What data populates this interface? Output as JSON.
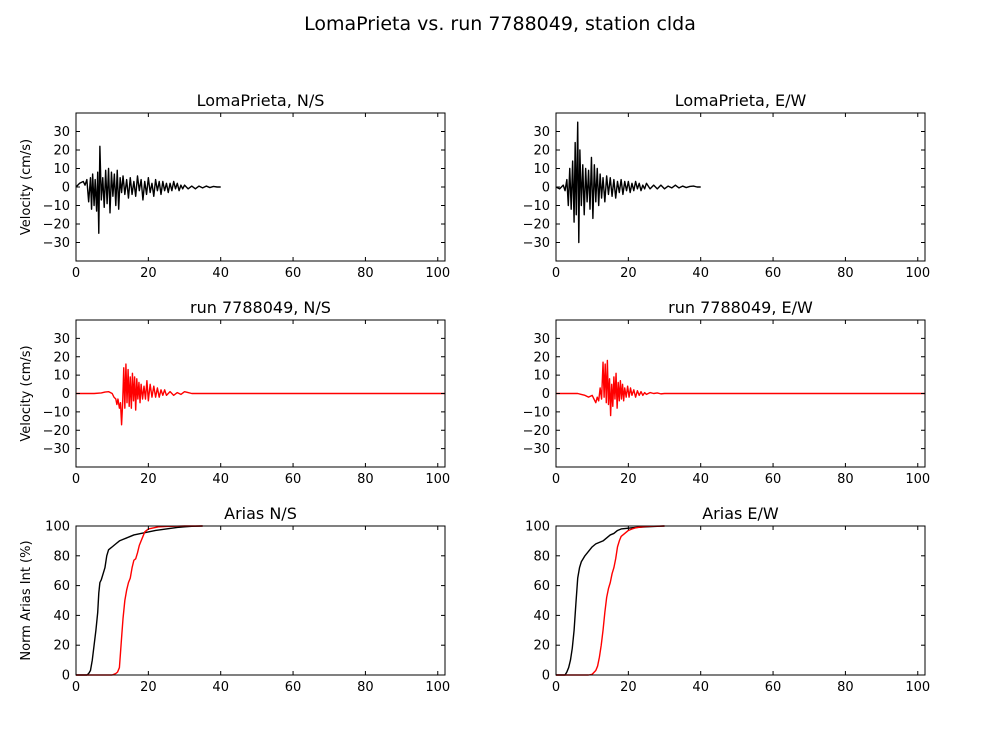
{
  "figure": {
    "title": "LomaPrieta vs. run 7788049, station clda"
  },
  "chart_data": [
    {
      "id": "p00",
      "type": "line",
      "title": "LomaPrieta, N/S",
      "ylabel": "Velocity (cm/s)",
      "xlim": [
        0,
        102
      ],
      "ylim": [
        -40,
        40
      ],
      "xticks": [
        0,
        20,
        40,
        60,
        80,
        100
      ],
      "yticks": [
        -30,
        -20,
        -10,
        0,
        10,
        20,
        30
      ],
      "series": [
        {
          "color": "#000000",
          "x": [
            0,
            1,
            2,
            2.5,
            3,
            3.5,
            4,
            4.3,
            4.6,
            5,
            5.3,
            5.7,
            6,
            6.3,
            6.6,
            7,
            7.4,
            7.8,
            8.2,
            8.6,
            9,
            9.4,
            9.8,
            10.2,
            10.6,
            11,
            11.4,
            11.8,
            12.2,
            12.6,
            13,
            13.5,
            14,
            14.5,
            15,
            15.5,
            16,
            16.5,
            17,
            17.5,
            18,
            18.5,
            19,
            19.5,
            20,
            20.5,
            21,
            21.5,
            22,
            22.5,
            23,
            23.5,
            24,
            24.5,
            25,
            25.5,
            26,
            26.5,
            27,
            27.5,
            28,
            28.5,
            29,
            29.5,
            30,
            31,
            32,
            33,
            34,
            35,
            36,
            37,
            38,
            39,
            40
          ],
          "y": [
            0,
            2,
            3,
            1,
            4,
            -8,
            5,
            -12,
            7,
            -10,
            4,
            -13,
            8,
            -25,
            22,
            -7,
            5,
            -11,
            9,
            -9,
            10,
            -14,
            8,
            -5,
            7,
            -10,
            9,
            -12,
            5,
            -3,
            6,
            -4,
            4,
            -6,
            5,
            -4,
            3,
            -5,
            6,
            -2,
            4,
            -7,
            3,
            -4,
            5,
            -3,
            2,
            -5,
            4,
            -2,
            3,
            -4,
            3,
            -2,
            2,
            -3,
            2,
            -2,
            3,
            -1,
            2,
            -2,
            1,
            -1,
            1,
            -1,
            0.5,
            -1,
            0.5,
            -0.5,
            0.5,
            -0.3,
            0.3,
            0,
            0
          ]
        }
      ]
    },
    {
      "id": "p01",
      "type": "line",
      "title": "LomaPrieta, E/W",
      "ylabel": "",
      "xlim": [
        0,
        102
      ],
      "ylim": [
        -40,
        40
      ],
      "xticks": [
        0,
        20,
        40,
        60,
        80,
        100
      ],
      "yticks": [
        -30,
        -20,
        -10,
        0,
        10,
        20,
        30
      ],
      "series": [
        {
          "color": "#000000",
          "x": [
            0,
            1,
            2,
            2.5,
            3,
            3.4,
            3.8,
            4.2,
            4.6,
            5,
            5.3,
            5.6,
            6,
            6.3,
            6.6,
            7,
            7.4,
            7.8,
            8.2,
            8.6,
            9,
            9.4,
            9.8,
            10.2,
            10.6,
            11,
            11.4,
            11.8,
            12.2,
            12.6,
            13,
            13.5,
            14,
            14.5,
            15,
            15.5,
            16,
            16.5,
            17,
            17.5,
            18,
            18.5,
            19,
            19.5,
            20,
            20.5,
            21,
            21.5,
            22,
            22.5,
            23,
            23.5,
            24,
            24.5,
            25,
            26,
            27,
            28,
            29,
            30,
            31,
            32,
            33,
            34,
            35,
            36,
            37,
            38,
            39,
            40
          ],
          "y": [
            0,
            -1,
            1,
            -2,
            4,
            -10,
            10,
            -12,
            14,
            -19,
            24,
            -15,
            35,
            -30,
            20,
            -10,
            12,
            -15,
            10,
            -8,
            9,
            -12,
            16,
            -17,
            12,
            -8,
            10,
            -10,
            7,
            -6,
            5,
            -8,
            6,
            -4,
            5,
            -5,
            4,
            -6,
            3,
            -3,
            4,
            -4,
            3,
            -2,
            3,
            -3,
            2,
            -2,
            3,
            -1,
            2,
            -2,
            1,
            -1,
            2,
            -1,
            1,
            -1,
            1,
            -1,
            0.5,
            -0.5,
            1,
            -0.5,
            0.5,
            -0.3,
            0.3,
            0.5,
            0,
            0
          ]
        }
      ]
    },
    {
      "id": "p10",
      "type": "line",
      "title": "run 7788049, N/S",
      "ylabel": "Velocity (cm/s)",
      "xlim": [
        0,
        102
      ],
      "ylim": [
        -40,
        40
      ],
      "xticks": [
        0,
        20,
        40,
        60,
        80,
        100
      ],
      "yticks": [
        -30,
        -20,
        -10,
        0,
        10,
        20,
        30
      ],
      "series": [
        {
          "color": "#ff0000",
          "x": [
            0,
            5,
            7,
            8,
            9,
            10,
            10.5,
            11,
            11.3,
            11.6,
            12,
            12.3,
            12.6,
            12.9,
            13.2,
            13.5,
            13.8,
            14.1,
            14.4,
            14.7,
            15,
            15.3,
            15.6,
            15.9,
            16.2,
            16.5,
            16.8,
            17.1,
            17.4,
            17.7,
            18,
            18.4,
            18.8,
            19.2,
            19.6,
            20,
            20.5,
            21,
            21.5,
            22,
            22.5,
            23,
            23.5,
            24,
            24.5,
            25,
            26,
            27,
            28,
            29,
            30,
            31,
            32,
            34,
            36,
            40,
            60,
            80,
            102
          ],
          "y": [
            0,
            0,
            0.3,
            0.8,
            1,
            0,
            -2,
            -3,
            -6,
            -3,
            -8,
            -5,
            -17,
            -5,
            14,
            -8,
            16,
            -5,
            13,
            -7,
            9,
            -8,
            11,
            -4,
            9,
            -9,
            8,
            -3,
            6,
            -5,
            5,
            -3,
            4,
            -3,
            7,
            -4,
            5,
            -2,
            4,
            -2,
            3,
            -2,
            2,
            -1,
            2,
            -1,
            1,
            -1,
            0.5,
            -0.5,
            1,
            0.5,
            0,
            0,
            0,
            0,
            0,
            0,
            0
          ]
        }
      ]
    },
    {
      "id": "p11",
      "type": "line",
      "title": "run 7788049, E/W",
      "ylabel": "",
      "xlim": [
        0,
        102
      ],
      "ylim": [
        -40,
        40
      ],
      "xticks": [
        0,
        20,
        40,
        60,
        80,
        100
      ],
      "yticks": [
        -30,
        -20,
        -10,
        0,
        10,
        20,
        30
      ],
      "series": [
        {
          "color": "#ff0000",
          "x": [
            0,
            6,
            7,
            8,
            9,
            10,
            10.5,
            11,
            11.4,
            11.8,
            12.2,
            12.6,
            13,
            13.3,
            13.6,
            13.9,
            14.2,
            14.5,
            14.8,
            15.1,
            15.4,
            15.7,
            16,
            16.3,
            16.6,
            16.9,
            17.2,
            17.5,
            17.8,
            18.1,
            18.4,
            18.7,
            19,
            19.4,
            19.8,
            20.2,
            20.6,
            21,
            21.5,
            22,
            22.5,
            23,
            23.5,
            24,
            24.5,
            25,
            26,
            27,
            28,
            29,
            30,
            32,
            40,
            60,
            80,
            102
          ],
          "y": [
            0,
            0,
            -0.5,
            -1,
            -2,
            -1,
            -3,
            -5,
            -2,
            -4,
            3,
            -3,
            17,
            -2,
            16,
            -5,
            18,
            -6,
            8,
            -12,
            5,
            -7,
            9,
            -3,
            11,
            -8,
            6,
            -4,
            7,
            -3,
            5,
            -4,
            3,
            -2,
            4,
            -2,
            3,
            -1,
            2,
            -2,
            1.5,
            -1,
            1,
            -1,
            0.5,
            -0.5,
            0.5,
            0,
            0.3,
            -0.2,
            0,
            0,
            0,
            0,
            0,
            0
          ]
        }
      ]
    },
    {
      "id": "p20",
      "type": "line",
      "title": "Arias N/S",
      "ylabel": "Norm Arias Int (%)",
      "xlim": [
        0,
        102
      ],
      "ylim": [
        0,
        100
      ],
      "xticks": [
        0,
        20,
        40,
        60,
        80,
        100
      ],
      "yticks": [
        0,
        20,
        40,
        60,
        80,
        100
      ],
      "series": [
        {
          "color": "#000000",
          "x": [
            0,
            3,
            3.5,
            4,
            4.5,
            5,
            5.5,
            6,
            6.3,
            6.6,
            7,
            7.5,
            8,
            8.5,
            9,
            9.5,
            10,
            11,
            12,
            13,
            14,
            15,
            16,
            18,
            20,
            22,
            25,
            28,
            30,
            32,
            35
          ],
          "y": [
            0,
            0,
            1,
            3,
            10,
            20,
            30,
            42,
            55,
            62,
            64,
            68,
            72,
            80,
            84,
            85,
            86,
            88,
            90,
            91,
            92,
            93,
            94,
            95,
            96,
            97,
            98,
            99,
            99.5,
            99.8,
            100
          ]
        },
        {
          "color": "#ff0000",
          "x": [
            0,
            10,
            11,
            11.5,
            12,
            12.3,
            12.6,
            13,
            13.5,
            14,
            14.5,
            15,
            15.5,
            16,
            16.5,
            17,
            17.5,
            18,
            18.5,
            19,
            19.5,
            20,
            21,
            22,
            23,
            25,
            28,
            30,
            35
          ],
          "y": [
            0,
            0,
            1,
            2,
            5,
            15,
            25,
            38,
            50,
            57,
            62,
            65,
            72,
            77,
            78,
            82,
            87,
            90,
            93,
            96,
            97,
            98,
            98.5,
            99,
            99.5,
            99.7,
            99.9,
            100,
            100
          ]
        }
      ]
    },
    {
      "id": "p21",
      "type": "line",
      "title": "Arias E/W",
      "ylabel": "",
      "xlim": [
        0,
        102
      ],
      "ylim": [
        0,
        100
      ],
      "xticks": [
        0,
        20,
        40,
        60,
        80,
        100
      ],
      "yticks": [
        0,
        20,
        40,
        60,
        80,
        100
      ],
      "series": [
        {
          "color": "#000000",
          "x": [
            0,
            2.5,
            3,
            3.5,
            4,
            4.5,
            5,
            5.5,
            6,
            6.5,
            7,
            7.5,
            8,
            9,
            10,
            11,
            12,
            13,
            14,
            15,
            16,
            17,
            18,
            20,
            22,
            25,
            28,
            30
          ],
          "y": [
            0,
            0,
            2,
            5,
            10,
            18,
            30,
            48,
            65,
            72,
            76,
            78,
            80,
            83,
            86,
            88,
            89,
            90,
            92,
            94,
            95,
            97,
            98,
            98.5,
            99,
            99.5,
            99.8,
            100
          ]
        },
        {
          "color": "#ff0000",
          "x": [
            0,
            9,
            10,
            11,
            11.5,
            12,
            12.5,
            13,
            13.5,
            14,
            14.5,
            15,
            15.5,
            16,
            16.5,
            17,
            17.5,
            18,
            19,
            20,
            21,
            22,
            23,
            24,
            25,
            27,
            30
          ],
          "y": [
            0,
            0,
            0.5,
            3,
            6,
            12,
            20,
            30,
            42,
            52,
            58,
            62,
            68,
            72,
            78,
            86,
            90,
            93,
            95,
            97,
            98,
            98.8,
            99.2,
            99.5,
            99.7,
            99.9,
            100
          ]
        }
      ]
    }
  ]
}
